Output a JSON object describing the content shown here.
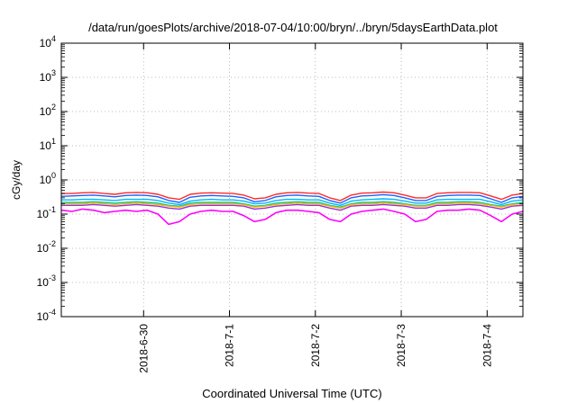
{
  "chart_data": {
    "type": "line",
    "title": "/data/run/goesPlots/archive/2018-07-04/10:00/bryn/../bryn/5daysEarthData.plot",
    "xlabel": "Coordinated Universal Time (UTC)",
    "ylabel": "cGy/day",
    "yscale": "log",
    "ylim": [
      0.0001,
      10000
    ],
    "xlim": [
      "2018-06-29 01:00",
      "2018-07-04 10:00"
    ],
    "grid": true,
    "legend": "none",
    "y_ticks": [
      {
        "base": "10",
        "exp": "4",
        "value": 10000
      },
      {
        "base": "10",
        "exp": "3",
        "value": 1000
      },
      {
        "base": "10",
        "exp": "2",
        "value": 100
      },
      {
        "base": "10",
        "exp": "1",
        "value": 10
      },
      {
        "base": "10",
        "exp": "0",
        "value": 1
      },
      {
        "base": "10",
        "exp": "-1",
        "value": 0.1
      },
      {
        "base": "10",
        "exp": "-2",
        "value": 0.01
      },
      {
        "base": "10",
        "exp": "-3",
        "value": 0.001
      },
      {
        "base": "10",
        "exp": "-4",
        "value": 0.0001
      }
    ],
    "x_ticks": [
      {
        "label": "2018-6-30",
        "value": "2018-06-30 00:00"
      },
      {
        "label": "2018-7-1",
        "value": "2018-07-01 00:00"
      },
      {
        "label": "2018-7-2",
        "value": "2018-07-02 00:00"
      },
      {
        "label": "2018-7-3",
        "value": "2018-07-03 00:00"
      },
      {
        "label": "2018-7-4",
        "value": "2018-07-04 00:00"
      }
    ],
    "x": [
      "2018-06-29 01:00",
      "2018-06-29 04:00",
      "2018-06-29 07:00",
      "2018-06-29 10:00",
      "2018-06-29 13:00",
      "2018-06-29 16:00",
      "2018-06-29 19:00",
      "2018-06-29 22:00",
      "2018-06-30 01:00",
      "2018-06-30 04:00",
      "2018-06-30 07:00",
      "2018-06-30 10:00",
      "2018-06-30 13:00",
      "2018-06-30 16:00",
      "2018-06-30 19:00",
      "2018-06-30 22:00",
      "2018-07-01 01:00",
      "2018-07-01 04:00",
      "2018-07-01 07:00",
      "2018-07-01 10:00",
      "2018-07-01 13:00",
      "2018-07-01 16:00",
      "2018-07-01 19:00",
      "2018-07-01 22:00",
      "2018-07-02 01:00",
      "2018-07-02 04:00",
      "2018-07-02 07:00",
      "2018-07-02 10:00",
      "2018-07-02 13:00",
      "2018-07-02 16:00",
      "2018-07-02 19:00",
      "2018-07-02 22:00",
      "2018-07-03 01:00",
      "2018-07-03 04:00",
      "2018-07-03 07:00",
      "2018-07-03 10:00",
      "2018-07-03 13:00",
      "2018-07-03 16:00",
      "2018-07-03 19:00",
      "2018-07-03 22:00",
      "2018-07-04 01:00",
      "2018-07-04 04:00",
      "2018-07-04 07:00",
      "2018-07-04 10:00"
    ],
    "series": [
      {
        "color": "#ff2a2a",
        "values": [
          0.4,
          0.4,
          0.42,
          0.43,
          0.4,
          0.38,
          0.42,
          0.43,
          0.42,
          0.38,
          0.3,
          0.27,
          0.38,
          0.41,
          0.42,
          0.41,
          0.4,
          0.36,
          0.28,
          0.3,
          0.38,
          0.42,
          0.43,
          0.41,
          0.4,
          0.3,
          0.25,
          0.36,
          0.41,
          0.42,
          0.44,
          0.42,
          0.36,
          0.3,
          0.3,
          0.4,
          0.42,
          0.43,
          0.43,
          0.42,
          0.34,
          0.27,
          0.36,
          0.4
        ]
      },
      {
        "color": "#1e5fff",
        "values": [
          0.33,
          0.34,
          0.35,
          0.36,
          0.34,
          0.32,
          0.35,
          0.36,
          0.35,
          0.32,
          0.25,
          0.22,
          0.31,
          0.34,
          0.35,
          0.34,
          0.33,
          0.3,
          0.23,
          0.25,
          0.32,
          0.35,
          0.36,
          0.34,
          0.33,
          0.25,
          0.21,
          0.3,
          0.34,
          0.35,
          0.37,
          0.35,
          0.3,
          0.25,
          0.25,
          0.33,
          0.35,
          0.36,
          0.36,
          0.35,
          0.28,
          0.22,
          0.3,
          0.33
        ]
      },
      {
        "color": "#00b4ff",
        "values": [
          0.26,
          0.26,
          0.27,
          0.27,
          0.26,
          0.25,
          0.27,
          0.27,
          0.27,
          0.25,
          0.21,
          0.19,
          0.24,
          0.26,
          0.27,
          0.26,
          0.26,
          0.24,
          0.2,
          0.21,
          0.25,
          0.27,
          0.27,
          0.26,
          0.26,
          0.21,
          0.18,
          0.24,
          0.26,
          0.27,
          0.28,
          0.27,
          0.24,
          0.21,
          0.21,
          0.26,
          0.27,
          0.27,
          0.27,
          0.27,
          0.23,
          0.19,
          0.24,
          0.26
        ]
      },
      {
        "color": "#00c890",
        "values": [
          0.22,
          0.22,
          0.22,
          0.23,
          0.22,
          0.21,
          0.22,
          0.23,
          0.22,
          0.21,
          0.18,
          0.17,
          0.21,
          0.22,
          0.22,
          0.22,
          0.22,
          0.2,
          0.17,
          0.18,
          0.21,
          0.22,
          0.23,
          0.22,
          0.22,
          0.18,
          0.16,
          0.2,
          0.22,
          0.22,
          0.23,
          0.22,
          0.2,
          0.18,
          0.18,
          0.22,
          0.22,
          0.23,
          0.23,
          0.22,
          0.19,
          0.17,
          0.2,
          0.22
        ]
      },
      {
        "color": "#ffb000",
        "values": [
          0.2,
          0.2,
          0.2,
          0.21,
          0.2,
          0.19,
          0.2,
          0.21,
          0.2,
          0.19,
          0.17,
          0.16,
          0.19,
          0.2,
          0.2,
          0.2,
          0.2,
          0.19,
          0.16,
          0.17,
          0.19,
          0.2,
          0.21,
          0.2,
          0.2,
          0.17,
          0.15,
          0.19,
          0.2,
          0.2,
          0.21,
          0.2,
          0.19,
          0.17,
          0.17,
          0.2,
          0.2,
          0.21,
          0.21,
          0.2,
          0.18,
          0.16,
          0.19,
          0.2
        ]
      },
      {
        "color": "#9b2fd6",
        "values": [
          0.18,
          0.18,
          0.18,
          0.19,
          0.18,
          0.17,
          0.18,
          0.19,
          0.18,
          0.17,
          0.15,
          0.14,
          0.17,
          0.18,
          0.18,
          0.18,
          0.18,
          0.17,
          0.14,
          0.15,
          0.17,
          0.18,
          0.19,
          0.18,
          0.18,
          0.15,
          0.13,
          0.17,
          0.18,
          0.18,
          0.19,
          0.18,
          0.17,
          0.15,
          0.15,
          0.18,
          0.18,
          0.19,
          0.19,
          0.18,
          0.16,
          0.14,
          0.17,
          0.18
        ]
      },
      {
        "color": "#ff00ff",
        "values": [
          0.13,
          0.12,
          0.14,
          0.13,
          0.11,
          0.12,
          0.13,
          0.12,
          0.13,
          0.1,
          0.05,
          0.06,
          0.1,
          0.12,
          0.13,
          0.12,
          0.12,
          0.09,
          0.06,
          0.07,
          0.11,
          0.13,
          0.13,
          0.12,
          0.11,
          0.07,
          0.06,
          0.1,
          0.12,
          0.13,
          0.14,
          0.12,
          0.1,
          0.06,
          0.07,
          0.12,
          0.13,
          0.13,
          0.14,
          0.13,
          0.09,
          0.06,
          0.1,
          0.12
        ]
      }
    ]
  }
}
